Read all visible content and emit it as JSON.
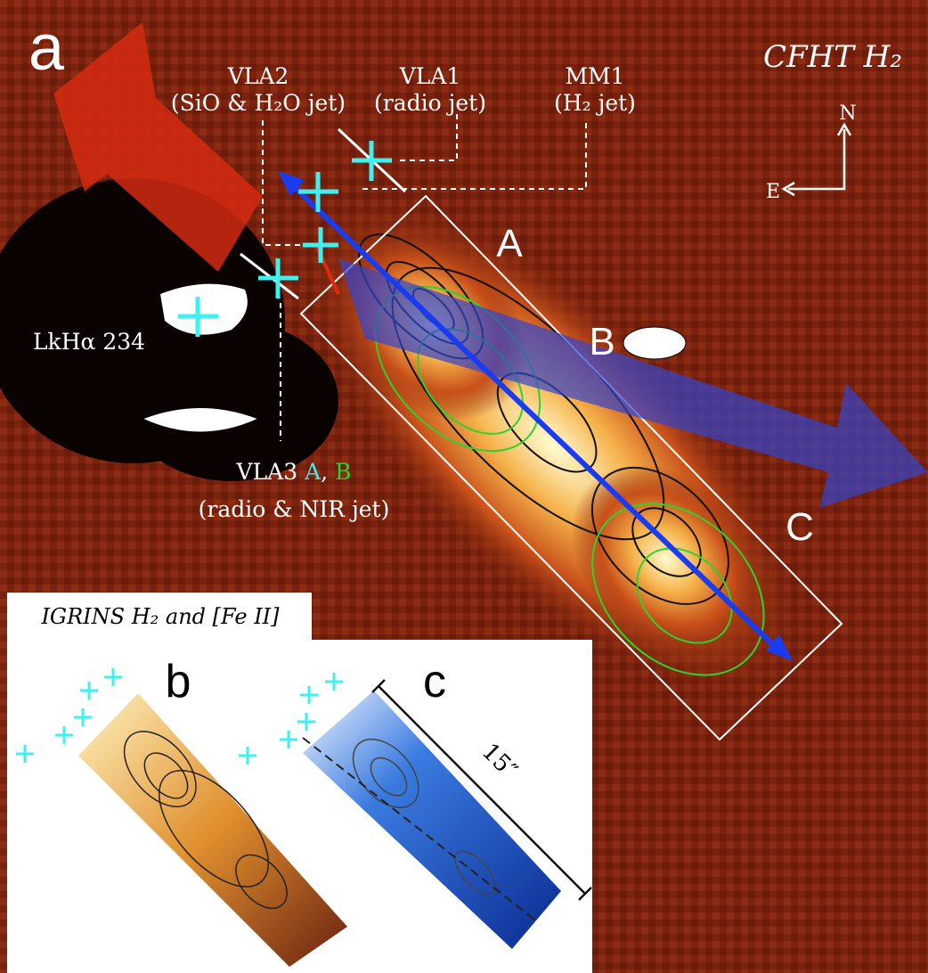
{
  "panel_a": {
    "letter": "a",
    "instrument": "CFHT H₂",
    "sources": [
      {
        "name": "VLA2",
        "note": "(SiO & H₂O jet)"
      },
      {
        "name": "VLA1",
        "note": "(radio jet)"
      },
      {
        "name": "MM1",
        "note": "(H₂ jet)"
      }
    ],
    "star": "LkHα 234",
    "vla3": {
      "name": "VLA3",
      "a": "A",
      "separator": ",",
      "b": "B",
      "note": "(radio & NIR jet)"
    },
    "compass": {
      "north": "N",
      "east": "E"
    },
    "knots": [
      "A",
      "B",
      "C"
    ]
  },
  "inset": {
    "title": "IGRINS H₂ and [Fe II]",
    "panel_b": "b",
    "panel_c": "c",
    "scale": "15″"
  }
}
